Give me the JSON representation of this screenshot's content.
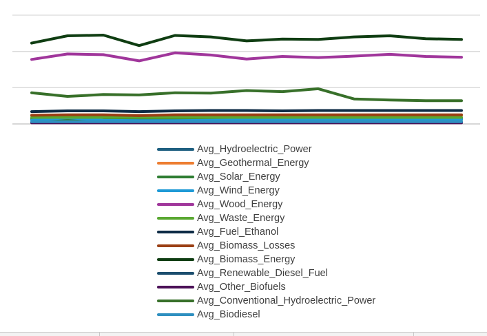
{
  "chart_data": {
    "type": "line",
    "title": "",
    "xlabel": "",
    "ylabel": "",
    "ylim": [
      0,
      30
    ],
    "grid": true,
    "legend_position": "bottom",
    "x": [
      1,
      2,
      3,
      4,
      5,
      6,
      7,
      8,
      9,
      10,
      11,
      12,
      13
    ],
    "series": [
      {
        "name": "Avg_Hydroelectric_Power",
        "color": "#1e5f80",
        "values": [
          1.4,
          1.5,
          1.5,
          1.4,
          1.5,
          1.5,
          1.5,
          1.5,
          1.5,
          1.5,
          1.5,
          1.5,
          1.5
        ]
      },
      {
        "name": "Avg_Geothermal_Energy",
        "color": "#ed7d31",
        "values": [
          2.3,
          2.4,
          2.4,
          2.3,
          2.4,
          2.4,
          2.4,
          2.4,
          2.4,
          2.4,
          2.4,
          2.4,
          2.4
        ]
      },
      {
        "name": "Avg_Solar_Energy",
        "color": "#2e7d32",
        "values": [
          1.2,
          1.1,
          1.1,
          1.0,
          1.2,
          1.3,
          1.3,
          1.3,
          1.3,
          1.2,
          1.2,
          1.2,
          1.2
        ]
      },
      {
        "name": "Avg_Wind_Energy",
        "color": "#1f9ad6",
        "values": [
          1.0,
          1.7,
          1.0,
          0.9,
          0.9,
          1.0,
          1.1,
          1.1,
          1.1,
          1.1,
          1.1,
          1.1,
          1.3
        ]
      },
      {
        "name": "Avg_Wood_Energy",
        "color": "#a0369b",
        "values": [
          17.8,
          19.3,
          19.1,
          17.4,
          19.6,
          19.0,
          17.9,
          18.6,
          18.3,
          18.7,
          19.2,
          18.6,
          18.4
        ]
      },
      {
        "name": "Avg_Waste_Energy",
        "color": "#5aa832",
        "values": [
          1.8,
          1.8,
          1.8,
          1.8,
          1.8,
          1.8,
          1.8,
          1.8,
          1.8,
          1.8,
          1.8,
          1.8,
          1.8
        ]
      },
      {
        "name": "Avg_Fuel_Ethanol",
        "color": "#0d2b45",
        "values": [
          3.4,
          3.6,
          3.6,
          3.4,
          3.6,
          3.7,
          3.7,
          3.6,
          3.7,
          3.7,
          3.7,
          3.7,
          3.7
        ]
      },
      {
        "name": "Avg_Biomass_Losses",
        "color": "#9a3f14",
        "values": [
          2.4,
          2.5,
          2.5,
          2.3,
          2.5,
          2.5,
          2.5,
          2.5,
          2.5,
          2.5,
          2.5,
          2.5,
          2.5
        ]
      },
      {
        "name": "Avg_Biomass_Energy",
        "color": "#0f3d12",
        "values": [
          22.3,
          24.3,
          24.5,
          21.6,
          24.4,
          24.0,
          22.9,
          23.4,
          23.3,
          24.0,
          24.3,
          23.5,
          23.3
        ]
      },
      {
        "name": "Avg_Renewable_Diesel_Fuel",
        "color": "#1c4e6e",
        "values": [
          0.4,
          0.4,
          0.4,
          0.4,
          0.4,
          0.4,
          0.5,
          0.5,
          0.5,
          0.5,
          0.5,
          0.5,
          0.5
        ]
      },
      {
        "name": "Avg_Other_Biofuels",
        "color": "#4b1057",
        "values": [
          0.3,
          0.3,
          0.3,
          0.3,
          0.3,
          0.3,
          0.3,
          0.3,
          0.3,
          0.3,
          0.3,
          0.3,
          0.3
        ]
      },
      {
        "name": "Avg_Conventional_Hydroelectric_Power",
        "color": "#38702a",
        "values": [
          8.6,
          7.6,
          8.1,
          8.0,
          8.6,
          8.5,
          9.2,
          8.9,
          9.7,
          6.9,
          6.6,
          6.4,
          6.4
        ]
      },
      {
        "name": "Avg_Biodiesel",
        "color": "#2e8fc0",
        "values": [
          0.6,
          0.6,
          0.6,
          0.6,
          0.6,
          0.6,
          0.6,
          0.6,
          0.6,
          0.6,
          0.6,
          0.6,
          0.6
        ]
      }
    ]
  }
}
